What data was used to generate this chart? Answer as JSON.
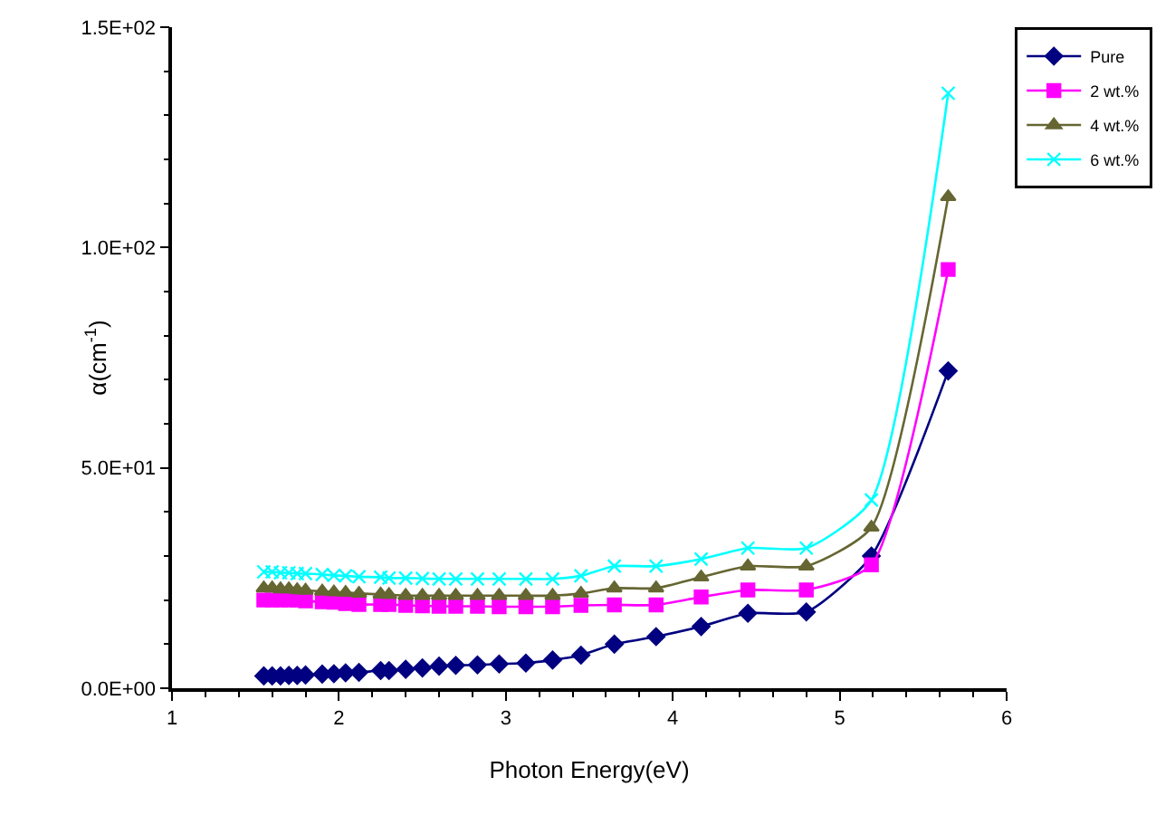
{
  "chart_data": {
    "type": "line",
    "xlabel": "Photon Energy(eV)",
    "ylabel": "α(cm$^{-1}$)",
    "x": [
      1.55,
      1.6,
      1.65,
      1.7,
      1.75,
      1.8,
      1.9,
      1.97,
      2.04,
      2.12,
      2.25,
      2.3,
      2.4,
      2.5,
      2.6,
      2.7,
      2.83,
      2.96,
      3.12,
      3.28,
      3.45,
      3.65,
      3.9,
      4.17,
      4.45,
      4.8,
      5.19,
      5.65
    ],
    "series": [
      {
        "name": "Pure",
        "color": "#000080",
        "marker": "diamond",
        "values": [
          2.8,
          2.8,
          2.8,
          2.9,
          2.9,
          3,
          3.2,
          3.3,
          3.5,
          3.6,
          4,
          4,
          4.3,
          4.6,
          5,
          5.2,
          5.3,
          5.5,
          5.7,
          6.4,
          7.5,
          10,
          11.7,
          14,
          17,
          17.3,
          30,
          72
        ]
      },
      {
        "name": "2 wt.%",
        "color": "#ff00ff",
        "marker": "square",
        "values": [
          20,
          20,
          20,
          20,
          20,
          19.8,
          19.6,
          19.5,
          19.2,
          19,
          19,
          19,
          18.8,
          18.7,
          18.6,
          18.6,
          18.6,
          18.5,
          18.5,
          18.5,
          18.8,
          18.9,
          18.9,
          20.7,
          22.3,
          22.3,
          28,
          95
        ]
      },
      {
        "name": "4 wt.%",
        "color": "#666633",
        "marker": "triangle",
        "values": [
          22.7,
          22.7,
          22.5,
          22.5,
          22.3,
          22.2,
          22,
          21.8,
          21.7,
          21.5,
          21.3,
          21.2,
          21,
          21,
          21,
          21,
          21,
          21,
          21,
          21,
          21.5,
          22.7,
          22.7,
          25.2,
          27.7,
          27.7,
          36.5,
          111.5
        ]
      },
      {
        "name": "6 wt.%",
        "color": "#00ffff",
        "marker": "cross",
        "values": [
          26.4,
          26.4,
          26.2,
          26.2,
          26,
          26,
          25.8,
          25.6,
          25.5,
          25.3,
          25.2,
          25,
          25,
          24.9,
          24.8,
          24.8,
          24.8,
          24.8,
          24.8,
          24.8,
          25.5,
          27.7,
          27.7,
          29.3,
          31.8,
          31.8,
          42.7,
          135
        ]
      }
    ],
    "xlim": [
      1,
      6
    ],
    "xticks": [
      1,
      2,
      3,
      4,
      5,
      6
    ],
    "ylim": [
      0,
      150
    ],
    "yticks": [
      {
        "value": 0,
        "label": "0.0E+00"
      },
      {
        "value": 50,
        "label": "5.0E+01"
      },
      {
        "value": 100,
        "label": "1.0E+02"
      },
      {
        "value": 150,
        "label": "1.5E+02"
      }
    ],
    "grid": false,
    "legend": "top right",
    "line_style": "solid"
  }
}
